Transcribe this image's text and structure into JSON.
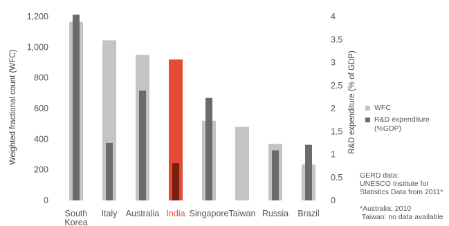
{
  "chart_data": {
    "type": "bar",
    "categories": [
      {
        "line1": "South",
        "line2": "Korea"
      },
      {
        "line1": "Italy",
        "line2": ""
      },
      {
        "line1": "Australia",
        "line2": ""
      },
      {
        "line1": "India",
        "line2": ""
      },
      {
        "line1": "Singapore",
        "line2": ""
      },
      {
        "line1": "Taiwan",
        "line2": ""
      },
      {
        "line1": "Russia",
        "line2": ""
      },
      {
        "line1": "Brazil",
        "line2": ""
      }
    ],
    "highlight_category": "India",
    "series": [
      {
        "name": "WFC",
        "axis": "left",
        "color": "#c4c4c4",
        "highlight_color": "#e64b36",
        "values": [
          1165,
          1045,
          950,
          920,
          520,
          480,
          370,
          235
        ]
      },
      {
        "name": "R&D expenditure (%GDP)",
        "axis": "right",
        "color": "#6b6b6b",
        "highlight_color": "#7a1e12",
        "values": [
          4.04,
          1.25,
          2.39,
          0.81,
          2.23,
          null,
          1.09,
          1.21
        ]
      }
    ],
    "ylabel": "Weighted fractional count (WFC)",
    "ylabel_right": "R&D expenditure (% of GDP)",
    "ylim": [
      0,
      1200
    ],
    "ylim_right": [
      0,
      4
    ],
    "yticks": [
      "0",
      "200",
      "400",
      "600",
      "800",
      "1,000",
      "1,200"
    ],
    "yticks_right": [
      "0",
      "0.5",
      "1",
      "1.5",
      "2",
      "2.5",
      "3",
      "3.5",
      "4"
    ],
    "legend": [
      {
        "label": "WFC",
        "color": "#c4c4c4"
      },
      {
        "label": "R&D expenditure",
        "label2": "(%GDP)",
        "color": "#6b6b6b"
      }
    ]
  },
  "notes": {
    "gerd_lines": [
      "GERD data:",
      "UNESCO Institute for",
      "Statistics Data from 2011*"
    ],
    "footnote_lines": [
      "*Australia: 2010",
      " Taiwan: no data available"
    ]
  }
}
